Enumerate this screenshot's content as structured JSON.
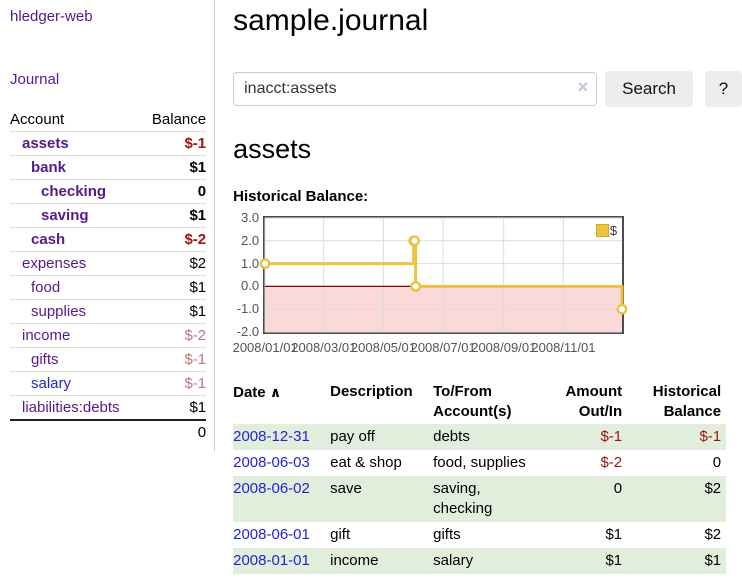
{
  "colors": {
    "purple": "#551a8b",
    "blue": "#2323d4",
    "negative": "#a01313",
    "muted_negative": "#bb7878",
    "green_row": "#e1eedb",
    "gold": "#edc240",
    "divider": "#cccccc"
  },
  "app": {
    "brand": "hledger-web",
    "nav_journal": "Journal"
  },
  "sidebar": {
    "header": {
      "account": "Account",
      "balance": "Balance"
    },
    "accounts": [
      {
        "name": "assets",
        "indent": 1,
        "bold": true,
        "link": "purple",
        "balance": "$-1",
        "balance_class": "neg"
      },
      {
        "name": "bank",
        "indent": 2,
        "bold": true,
        "link": "purple",
        "balance": "$1",
        "balance_class": ""
      },
      {
        "name": "checking",
        "indent": 3,
        "bold": true,
        "link": "purple",
        "balance": "0",
        "balance_class": ""
      },
      {
        "name": "saving",
        "indent": 3,
        "bold": true,
        "link": "purple",
        "balance": "$1",
        "balance_class": ""
      },
      {
        "name": "cash",
        "indent": 2,
        "bold": true,
        "link": "purple",
        "balance": "$-2",
        "balance_class": "neg"
      },
      {
        "name": "expenses",
        "indent": 1,
        "bold": false,
        "link": "purple",
        "balance": "$2",
        "balance_class": ""
      },
      {
        "name": "food",
        "indent": 2,
        "bold": false,
        "link": "purple",
        "balance": "$1",
        "balance_class": ""
      },
      {
        "name": "supplies",
        "indent": 2,
        "bold": false,
        "link": "purple",
        "balance": "$1",
        "balance_class": ""
      },
      {
        "name": "income",
        "indent": 1,
        "bold": false,
        "link": "purple",
        "balance": "$-2",
        "balance_class": "muted-neg"
      },
      {
        "name": "gifts",
        "indent": 2,
        "bold": false,
        "link": "purple",
        "balance": "$-1",
        "balance_class": "muted-neg"
      },
      {
        "name": "salary",
        "indent": 2,
        "bold": false,
        "link": "blue",
        "balance": "$-1",
        "balance_class": "muted-neg"
      },
      {
        "name": "liabilities:debts",
        "indent": 1,
        "bold": false,
        "link": "purple",
        "balance": "$1",
        "balance_class": ""
      }
    ],
    "total": "0"
  },
  "header": {
    "title": "sample.journal"
  },
  "search": {
    "value": "inacct:assets",
    "clear_icon": "×",
    "button_label": "Search",
    "help_label": "?"
  },
  "account_page": {
    "heading": "assets",
    "chart_label": "Historical Balance:"
  },
  "chart_data": {
    "type": "line",
    "style": "step",
    "title": "Historical Balance",
    "legend": "$",
    "legend_position": "top-right",
    "grid": true,
    "ylim": [
      -2.0,
      3.0
    ],
    "y_ticks": [
      3.0,
      2.0,
      1.0,
      0.0,
      -1.0,
      -2.0
    ],
    "x_range": [
      "2008-01-01",
      "2008-12-31"
    ],
    "x_ticks": [
      {
        "label": "2008/01/01",
        "date": "2008-01-01"
      },
      {
        "label": "2008/03/01",
        "date": "2008-03-01"
      },
      {
        "label": "2008/05/01",
        "date": "2008-05-01"
      },
      {
        "label": "2008/07/01",
        "date": "2008-07-01"
      },
      {
        "label": "2008/09/01",
        "date": "2008-09-01"
      },
      {
        "label": "2008/11/01",
        "date": "2008-11-01"
      }
    ],
    "points": [
      [
        "2008-01-01",
        1
      ],
      [
        "2008-06-01",
        2
      ],
      [
        "2008-06-02",
        2
      ],
      [
        "2008-06-03",
        0
      ],
      [
        "2008-12-31",
        -1
      ]
    ],
    "negative_region_color": "#fbd9d9",
    "zero_line_color": "#8b0000",
    "grid_color": "#dcdcdc"
  },
  "register": {
    "columns": {
      "date": "Date",
      "sort_icon": "∧",
      "description": "Description",
      "accounts": "To/From Account(s)",
      "amount": "Amount Out/In",
      "balance": "Historical Balance"
    },
    "rows": [
      {
        "date": "2008-12-31",
        "description": "pay off",
        "accounts": "debts",
        "amount": "$-1",
        "amount_neg": true,
        "balance": "$-1",
        "balance_neg": true,
        "green": true
      },
      {
        "date": "2008-06-03",
        "description": "eat & shop",
        "accounts": "food, supplies",
        "amount": "$-2",
        "amount_neg": true,
        "balance": "0",
        "balance_neg": false,
        "green": false
      },
      {
        "date": "2008-06-02",
        "description": "save",
        "accounts": "saving,\nchecking",
        "amount": "0",
        "amount_neg": false,
        "balance": "$2",
        "balance_neg": false,
        "green": true
      },
      {
        "date": "2008-06-01",
        "description": "gift",
        "accounts": "gifts",
        "amount": "$1",
        "amount_neg": false,
        "balance": "$2",
        "balance_neg": false,
        "green": false
      },
      {
        "date": "2008-01-01",
        "description": "income",
        "accounts": "salary",
        "amount": "$1",
        "amount_neg": false,
        "balance": "$1",
        "balance_neg": false,
        "green": true
      }
    ]
  }
}
